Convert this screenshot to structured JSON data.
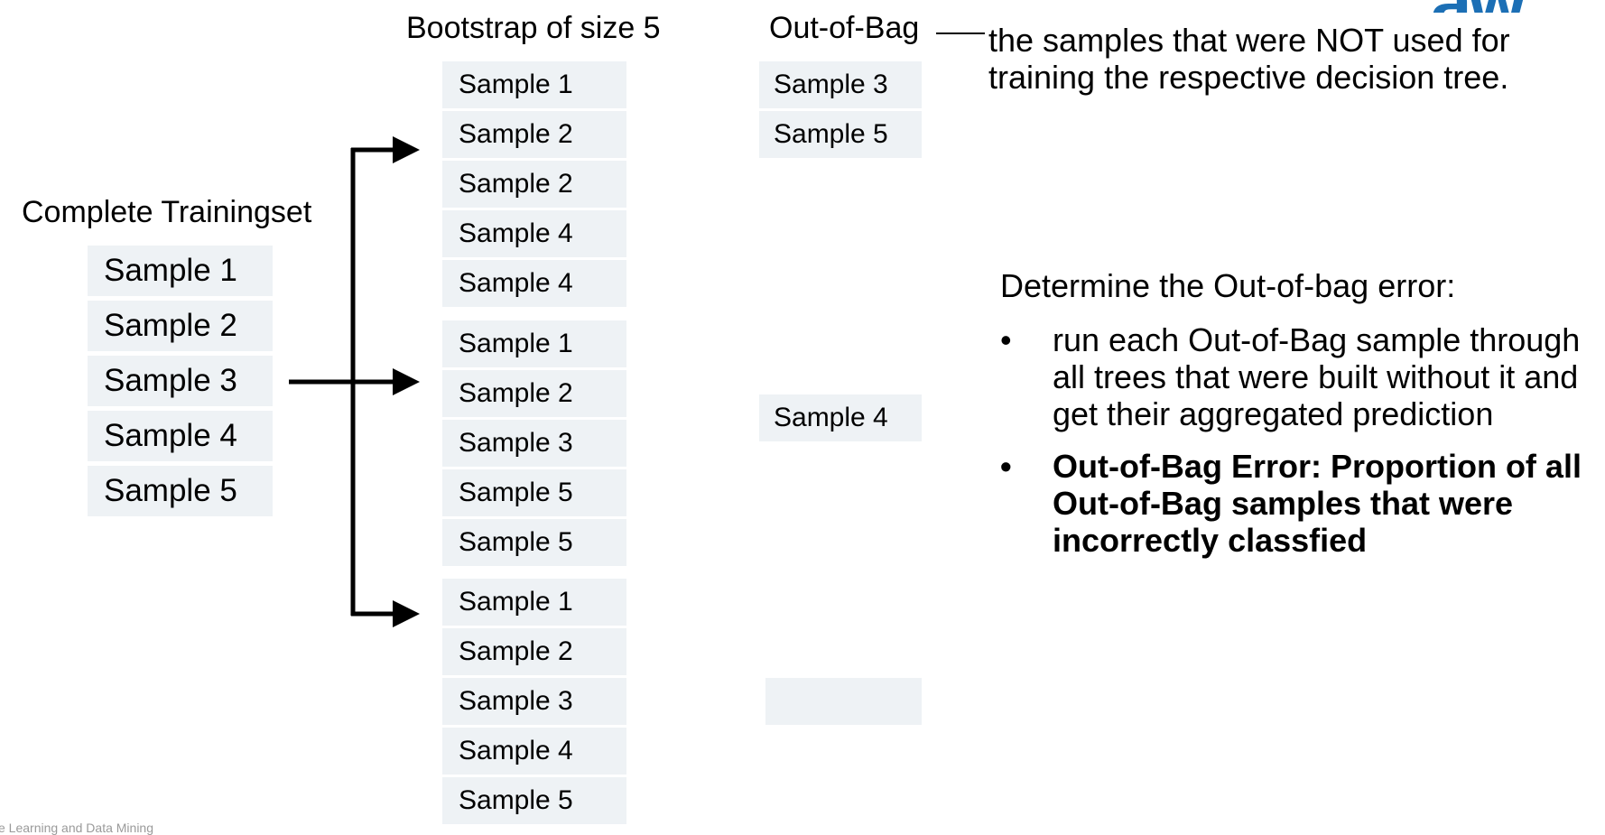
{
  "logo_text": "aw",
  "headers": {
    "training": "Complete Trainingset",
    "bootstrap": "Bootstrap of size 5",
    "oob": "Out-of-Bag"
  },
  "oob_description": "the samples that were NOT used for training the respective decision tree.",
  "training_samples": [
    "Sample 1",
    "Sample 2",
    "Sample 3",
    "Sample 4",
    "Sample 5"
  ],
  "bootstraps": [
    [
      "Sample 1",
      "Sample 2",
      "Sample 2",
      "Sample 4",
      "Sample 4"
    ],
    [
      "Sample 1",
      "Sample 2",
      "Sample 3",
      "Sample 5",
      "Sample 5"
    ],
    [
      "Sample 1",
      "Sample 2",
      "Sample 3",
      "Sample 4",
      "Sample 5"
    ]
  ],
  "oob_sets": [
    [
      "Sample 3",
      "Sample 5"
    ],
    [
      "Sample 4"
    ],
    [
      ""
    ]
  ],
  "oob_error": {
    "title": "Determine the Out-of-bag error:",
    "bullet_symbol": "•",
    "bullets": [
      "run each Out-of-Bag sample through all trees that were built without it and get their aggregated prediction",
      "Out-of-Bag Error: Proportion of all Out-of-Bag samples that were incorrectly classfied"
    ]
  },
  "footer": "e Learning and Data Mining"
}
